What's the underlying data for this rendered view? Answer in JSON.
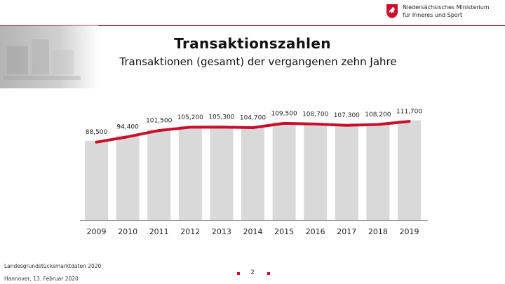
{
  "header": {
    "ministry_line1": "Niedersächsisches Ministerium",
    "ministry_line2": "für Inneres und Sport"
  },
  "slide": {
    "title": "Transaktionszahlen",
    "subtitle": "Transaktionen (gesamt) der vergangenen zehn Jahre"
  },
  "chart_data": {
    "type": "bar",
    "title": "Transaktionen (gesamt) der vergangenen zehn Jahre",
    "categories": [
      "2009",
      "2010",
      "2011",
      "2012",
      "2013",
      "2014",
      "2015",
      "2016",
      "2017",
      "2018",
      "2019"
    ],
    "values": [
      88500,
      94400,
      101500,
      105200,
      105300,
      104700,
      109500,
      108700,
      107300,
      108200,
      111700
    ],
    "labels": [
      "88,500",
      "94,400",
      "101,500",
      "105,200",
      "105,300",
      "104,700",
      "109,500",
      "108,700",
      "107,300",
      "108,200",
      "111,700"
    ],
    "overlay": "line",
    "ylim": [
      0,
      115000
    ],
    "grid": false,
    "xlabel": "",
    "ylabel": "",
    "colors": {
      "bar": "#d9d9d9",
      "line": "#c8102e",
      "axis": "#999999"
    }
  },
  "footer": {
    "source": "Landesgrundstücksmarktdaten 2020",
    "place_date": "Hannover, 13. Februar 2020",
    "page": "2"
  }
}
